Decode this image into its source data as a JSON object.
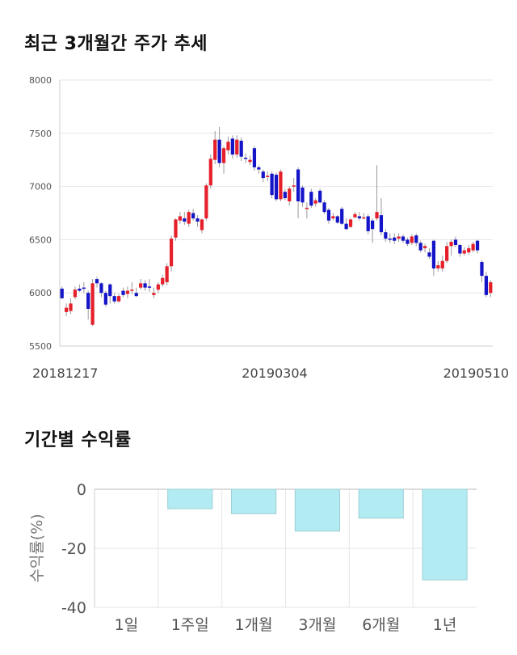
{
  "titles": {
    "price_chart": "최근 3개월간 주가 추세",
    "return_chart": "기간별 수익률"
  },
  "chart_data": [
    {
      "type": "candlestick",
      "title": "최근 3개월간 주가 추세",
      "ylim": [
        5500,
        8000
      ],
      "y_ticks": [
        5500,
        6000,
        6500,
        7000,
        7500,
        8000
      ],
      "x_tick_labels": [
        "20181217",
        "20190304",
        "20190510"
      ],
      "grid": true,
      "colors": {
        "up": "#e5202a",
        "down": "#1414c8",
        "wick": "#999999"
      },
      "candles": [
        [
          6040,
          5950,
          6060,
          5940
        ],
        [
          5820,
          5860,
          5900,
          5780
        ],
        [
          5830,
          5900,
          5950,
          5800
        ],
        [
          5960,
          6030,
          6060,
          5940
        ],
        [
          6040,
          6020,
          6080,
          6010
        ],
        [
          6050,
          6040,
          6100,
          6000
        ],
        [
          6000,
          5850,
          6020,
          5750
        ],
        [
          5700,
          6090,
          6130,
          5690
        ],
        [
          6130,
          6090,
          6150,
          6050
        ],
        [
          6090,
          6000,
          6100,
          5960
        ],
        [
          6000,
          5890,
          6020,
          5870
        ],
        [
          6080,
          5970,
          6090,
          5900
        ],
        [
          5970,
          5920,
          6000,
          5900
        ],
        [
          5920,
          5970,
          5990,
          5910
        ],
        [
          6020,
          5980,
          6050,
          5960
        ],
        [
          5990,
          6020,
          6060,
          5950
        ],
        [
          6020,
          6030,
          6100,
          5990
        ],
        [
          6000,
          5970,
          6050,
          5960
        ],
        [
          6050,
          6090,
          6130,
          6030
        ],
        [
          6090,
          6050,
          6120,
          6020
        ],
        [
          6060,
          6050,
          6130,
          6010
        ],
        [
          5980,
          6000,
          6050,
          5950
        ],
        [
          6030,
          6080,
          6100,
          6000
        ],
        [
          6080,
          6140,
          6170,
          6060
        ],
        [
          6100,
          6250,
          6280,
          6070
        ],
        [
          6250,
          6510,
          6540,
          6200
        ],
        [
          6520,
          6690,
          6700,
          6490
        ],
        [
          6680,
          6720,
          6760,
          6650
        ],
        [
          6700,
          6670,
          6760,
          6640
        ],
        [
          6650,
          6760,
          6780,
          6620
        ],
        [
          6750,
          6700,
          6790,
          6680
        ],
        [
          6700,
          6670,
          6730,
          6620
        ],
        [
          6590,
          6690,
          6700,
          6560
        ],
        [
          6700,
          7010,
          7030,
          6680
        ],
        [
          7010,
          7260,
          7300,
          6980
        ],
        [
          7250,
          7440,
          7520,
          7210
        ],
        [
          7440,
          7220,
          7560,
          7180
        ],
        [
          7220,
          7360,
          7380,
          7120
        ],
        [
          7340,
          7420,
          7470,
          7300
        ],
        [
          7450,
          7300,
          7480,
          7260
        ],
        [
          7300,
          7440,
          7480,
          7270
        ],
        [
          7430,
          7280,
          7460,
          7240
        ],
        [
          7270,
          7260,
          7310,
          7220
        ],
        [
          7230,
          7250,
          7290,
          7200
        ],
        [
          7360,
          7180,
          7380,
          7150
        ],
        [
          7180,
          7160,
          7200,
          7120
        ],
        [
          7140,
          7080,
          7160,
          7040
        ],
        [
          7100,
          7100,
          7140,
          7050
        ],
        [
          7120,
          6920,
          7140,
          6890
        ],
        [
          7110,
          6880,
          7130,
          6860
        ],
        [
          6880,
          7140,
          7160,
          6860
        ],
        [
          6950,
          6890,
          6980,
          6870
        ],
        [
          6860,
          6980,
          7000,
          6820
        ],
        [
          7000,
          7010,
          7080,
          6950
        ],
        [
          7160,
          6860,
          7180,
          6700
        ],
        [
          6990,
          6850,
          7010,
          6810
        ],
        [
          6800,
          6800,
          6850,
          6700
        ],
        [
          6950,
          6820,
          6980,
          6800
        ],
        [
          6840,
          6870,
          6890,
          6810
        ],
        [
          6960,
          6850,
          6980,
          6840
        ],
        [
          6850,
          6760,
          6870,
          6740
        ],
        [
          6780,
          6680,
          6800,
          6650
        ],
        [
          6700,
          6720,
          6750,
          6680
        ],
        [
          6720,
          6660,
          6730,
          6650
        ],
        [
          6790,
          6650,
          6810,
          6640
        ],
        [
          6650,
          6600,
          6700,
          6590
        ],
        [
          6620,
          6690,
          6700,
          6610
        ],
        [
          6710,
          6740,
          6760,
          6700
        ],
        [
          6720,
          6700,
          6760,
          6680
        ],
        [
          6700,
          6710,
          6750,
          6690
        ],
        [
          6720,
          6580,
          6740,
          6550
        ],
        [
          6680,
          6600,
          6700,
          6470
        ],
        [
          6700,
          6760,
          7200,
          6680
        ],
        [
          6730,
          6570,
          6890,
          6540
        ],
        [
          6570,
          6510,
          6600,
          6480
        ],
        [
          6510,
          6500,
          6560,
          6470
        ],
        [
          6520,
          6490,
          6560,
          6460
        ],
        [
          6510,
          6530,
          6560,
          6480
        ],
        [
          6530,
          6490,
          6550,
          6470
        ],
        [
          6500,
          6460,
          6520,
          6440
        ],
        [
          6470,
          6530,
          6550,
          6450
        ],
        [
          6540,
          6470,
          6560,
          6440
        ],
        [
          6470,
          6400,
          6490,
          6380
        ],
        [
          6420,
          6440,
          6460,
          6380
        ],
        [
          6380,
          6340,
          6420,
          6320
        ],
        [
          6490,
          6230,
          6500,
          6160
        ],
        [
          6230,
          6260,
          6300,
          6200
        ],
        [
          6230,
          6300,
          6350,
          6200
        ],
        [
          6300,
          6440,
          6480,
          6280
        ],
        [
          6440,
          6480,
          6500,
          6350
        ],
        [
          6500,
          6450,
          6530,
          6430
        ],
        [
          6450,
          6370,
          6460,
          6340
        ],
        [
          6370,
          6400,
          6430,
          6350
        ],
        [
          6380,
          6420,
          6450,
          6360
        ],
        [
          6400,
          6460,
          6480,
          6380
        ],
        [
          6490,
          6400,
          6500,
          6370
        ],
        [
          6290,
          6160,
          6310,
          6100
        ],
        [
          6160,
          5980,
          6200,
          5960
        ],
        [
          6000,
          6100,
          6120,
          5960
        ]
      ]
    },
    {
      "type": "bar",
      "title": "기간별 수익률",
      "ylabel": "수익률(%)",
      "ylim": [
        -40,
        0
      ],
      "y_ticks": [
        0,
        -20,
        -40
      ],
      "categories": [
        "1일",
        "1주일",
        "1개월",
        "3개월",
        "6개월",
        "1년"
      ],
      "values": [
        0,
        -6.6,
        -8.3,
        -14.2,
        -9.8,
        -30.7
      ],
      "colors": {
        "bar_fill": "#b3ebf2",
        "bar_stroke": "#9ecfd6"
      },
      "grid": true
    }
  ]
}
